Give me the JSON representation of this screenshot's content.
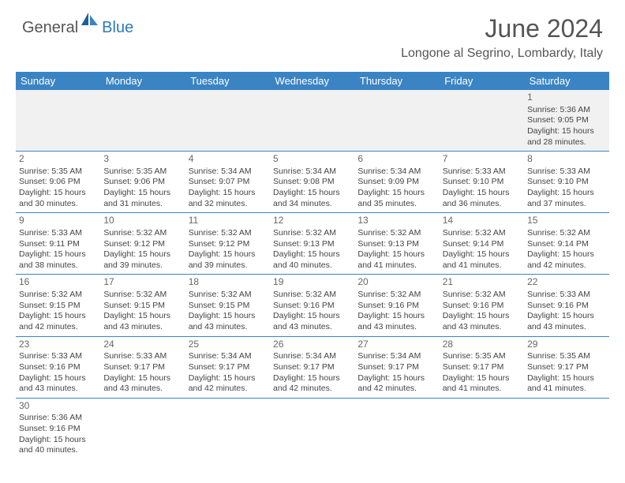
{
  "logo": {
    "part1": "General",
    "part2": "Blue"
  },
  "title": "June 2024",
  "location": "Longone al Segrino, Lombardy, Italy",
  "colors": {
    "header_bg": "#3b84c4",
    "header_text": "#ffffff",
    "text": "#444444",
    "title": "#555555",
    "brand_blue": "#2b7bbf"
  },
  "day_headers": [
    "Sunday",
    "Monday",
    "Tuesday",
    "Wednesday",
    "Thursday",
    "Friday",
    "Saturday"
  ],
  "weeks": [
    [
      null,
      null,
      null,
      null,
      null,
      null,
      {
        "n": "1",
        "sr": "5:36 AM",
        "ss": "9:05 PM",
        "dl": "15 hours and 28 minutes."
      }
    ],
    [
      {
        "n": "2",
        "sr": "5:35 AM",
        "ss": "9:06 PM",
        "dl": "15 hours and 30 minutes."
      },
      {
        "n": "3",
        "sr": "5:35 AM",
        "ss": "9:06 PM",
        "dl": "15 hours and 31 minutes."
      },
      {
        "n": "4",
        "sr": "5:34 AM",
        "ss": "9:07 PM",
        "dl": "15 hours and 32 minutes."
      },
      {
        "n": "5",
        "sr": "5:34 AM",
        "ss": "9:08 PM",
        "dl": "15 hours and 34 minutes."
      },
      {
        "n": "6",
        "sr": "5:34 AM",
        "ss": "9:09 PM",
        "dl": "15 hours and 35 minutes."
      },
      {
        "n": "7",
        "sr": "5:33 AM",
        "ss": "9:10 PM",
        "dl": "15 hours and 36 minutes."
      },
      {
        "n": "8",
        "sr": "5:33 AM",
        "ss": "9:10 PM",
        "dl": "15 hours and 37 minutes."
      }
    ],
    [
      {
        "n": "9",
        "sr": "5:33 AM",
        "ss": "9:11 PM",
        "dl": "15 hours and 38 minutes."
      },
      {
        "n": "10",
        "sr": "5:32 AM",
        "ss": "9:12 PM",
        "dl": "15 hours and 39 minutes."
      },
      {
        "n": "11",
        "sr": "5:32 AM",
        "ss": "9:12 PM",
        "dl": "15 hours and 39 minutes."
      },
      {
        "n": "12",
        "sr": "5:32 AM",
        "ss": "9:13 PM",
        "dl": "15 hours and 40 minutes."
      },
      {
        "n": "13",
        "sr": "5:32 AM",
        "ss": "9:13 PM",
        "dl": "15 hours and 41 minutes."
      },
      {
        "n": "14",
        "sr": "5:32 AM",
        "ss": "9:14 PM",
        "dl": "15 hours and 41 minutes."
      },
      {
        "n": "15",
        "sr": "5:32 AM",
        "ss": "9:14 PM",
        "dl": "15 hours and 42 minutes."
      }
    ],
    [
      {
        "n": "16",
        "sr": "5:32 AM",
        "ss": "9:15 PM",
        "dl": "15 hours and 42 minutes."
      },
      {
        "n": "17",
        "sr": "5:32 AM",
        "ss": "9:15 PM",
        "dl": "15 hours and 43 minutes."
      },
      {
        "n": "18",
        "sr": "5:32 AM",
        "ss": "9:15 PM",
        "dl": "15 hours and 43 minutes."
      },
      {
        "n": "19",
        "sr": "5:32 AM",
        "ss": "9:16 PM",
        "dl": "15 hours and 43 minutes."
      },
      {
        "n": "20",
        "sr": "5:32 AM",
        "ss": "9:16 PM",
        "dl": "15 hours and 43 minutes."
      },
      {
        "n": "21",
        "sr": "5:32 AM",
        "ss": "9:16 PM",
        "dl": "15 hours and 43 minutes."
      },
      {
        "n": "22",
        "sr": "5:33 AM",
        "ss": "9:16 PM",
        "dl": "15 hours and 43 minutes."
      }
    ],
    [
      {
        "n": "23",
        "sr": "5:33 AM",
        "ss": "9:16 PM",
        "dl": "15 hours and 43 minutes."
      },
      {
        "n": "24",
        "sr": "5:33 AM",
        "ss": "9:17 PM",
        "dl": "15 hours and 43 minutes."
      },
      {
        "n": "25",
        "sr": "5:34 AM",
        "ss": "9:17 PM",
        "dl": "15 hours and 42 minutes."
      },
      {
        "n": "26",
        "sr": "5:34 AM",
        "ss": "9:17 PM",
        "dl": "15 hours and 42 minutes."
      },
      {
        "n": "27",
        "sr": "5:34 AM",
        "ss": "9:17 PM",
        "dl": "15 hours and 42 minutes."
      },
      {
        "n": "28",
        "sr": "5:35 AM",
        "ss": "9:17 PM",
        "dl": "15 hours and 41 minutes."
      },
      {
        "n": "29",
        "sr": "5:35 AM",
        "ss": "9:17 PM",
        "dl": "15 hours and 41 minutes."
      }
    ],
    [
      {
        "n": "30",
        "sr": "5:36 AM",
        "ss": "9:16 PM",
        "dl": "15 hours and 40 minutes."
      },
      null,
      null,
      null,
      null,
      null,
      null
    ]
  ],
  "labels": {
    "sunrise": "Sunrise: ",
    "sunset": "Sunset: ",
    "daylight": "Daylight: "
  }
}
